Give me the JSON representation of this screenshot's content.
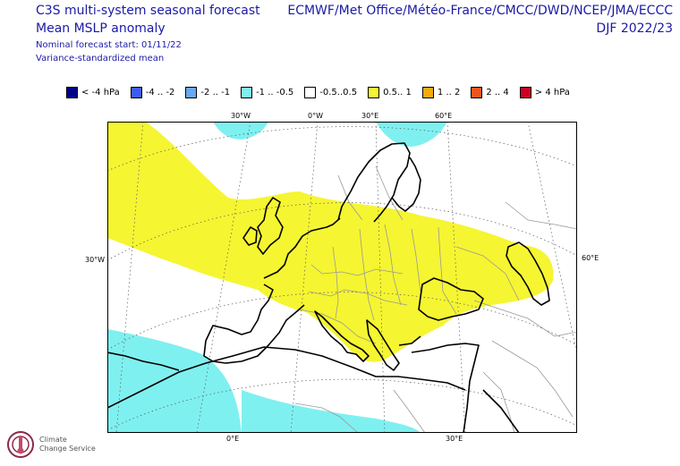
{
  "title": {
    "line1": "C3S multi-system seasonal forecast",
    "line2": "Mean MSLP anomaly",
    "line3": "Nominal forecast start: 01/11/22",
    "line4": "Variance-standardized mean"
  },
  "header_right": {
    "systems": "ECMWF/Met Office/Météo-France/CMCC/DWD/NCEP/JMA/ECCC",
    "season": "DJF 2022/23"
  },
  "legend": [
    {
      "label": "< -4 hPa",
      "color": "#00008b"
    },
    {
      "label": "-4 .. -2",
      "color": "#3b5cf0"
    },
    {
      "label": "-2 .. -1",
      "color": "#69a8f2"
    },
    {
      "label": "-1 .. -0.5",
      "color": "#7ff0f0"
    },
    {
      "label": "-0.5..0.5",
      "color": "#ffffff"
    },
    {
      "label": "0.5.. 1",
      "color": "#f5f532"
    },
    {
      "label": "1 .. 2",
      "color": "#f5a90e"
    },
    {
      "label": "2 .. 4",
      "color": "#f0541e"
    },
    {
      "label": "> 4 hPa",
      "color": "#cc0022"
    }
  ],
  "grid_labels": {
    "top": [
      "30°W",
      "0°W",
      "30°E",
      "60°E"
    ],
    "left": "30°W",
    "right": "60°E",
    "bottom": [
      "0°E",
      "30°E"
    ]
  },
  "logo": {
    "line1": "Climate",
    "line2": "Change Service"
  },
  "colors": {
    "title": "#1a1aa6",
    "positive_anomaly": "#f5f532",
    "negative_anomaly": "#7ff0f0"
  }
}
